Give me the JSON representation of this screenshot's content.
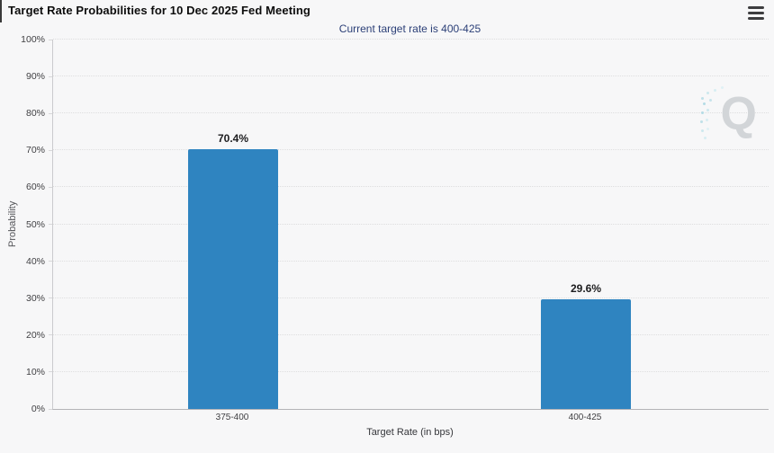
{
  "menu": {
    "icon": "hamburger-menu",
    "label": "chart context menu"
  },
  "chart_data": {
    "type": "bar",
    "title": "Target Rate Probabilities for 10 Dec 2025 Fed Meeting",
    "subtitle": "Current target rate is 400-425",
    "categories": [
      "375-400",
      "400-425"
    ],
    "values": [
      70.4,
      29.6
    ],
    "value_labels": [
      "70.4%",
      "29.6%"
    ],
    "xlabel": "Target Rate (in bps)",
    "ylabel": "Probability",
    "ylim": [
      0,
      100
    ],
    "y_ticks": [
      "0%",
      "10%",
      "20%",
      "30%",
      "40%",
      "50%",
      "60%",
      "70%",
      "80%",
      "90%",
      "100%"
    ],
    "grid": "horizontal-dotted",
    "legend": "none",
    "bar_color": "#2f84c0",
    "subtitle_color": "#2b3f77",
    "background_color": "#f7f7f8"
  },
  "watermark": {
    "letter": "Q"
  }
}
